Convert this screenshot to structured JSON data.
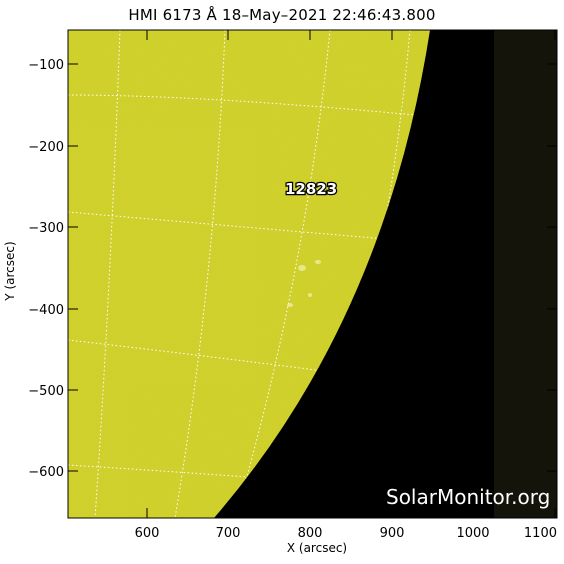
{
  "header": {
    "title": "HMI 6173 Å 18–May–2021 22:46:43.800"
  },
  "axes": {
    "xlabel": "X (arcsec)",
    "ylabel": "Y (arcsec)",
    "x_ticks": [
      "600",
      "700",
      "800",
      "900",
      "1000",
      "1100"
    ],
    "y_ticks": [
      "−100",
      "−200",
      "−300",
      "−400",
      "−500",
      "−600"
    ]
  },
  "annotations": {
    "active_region": "12823"
  },
  "watermark": "SolarMonitor.org",
  "colors": {
    "sun_disk": "#cfcf2a",
    "space": "#000000",
    "off_frame": "#14140a",
    "grid": "#ffffff"
  }
}
